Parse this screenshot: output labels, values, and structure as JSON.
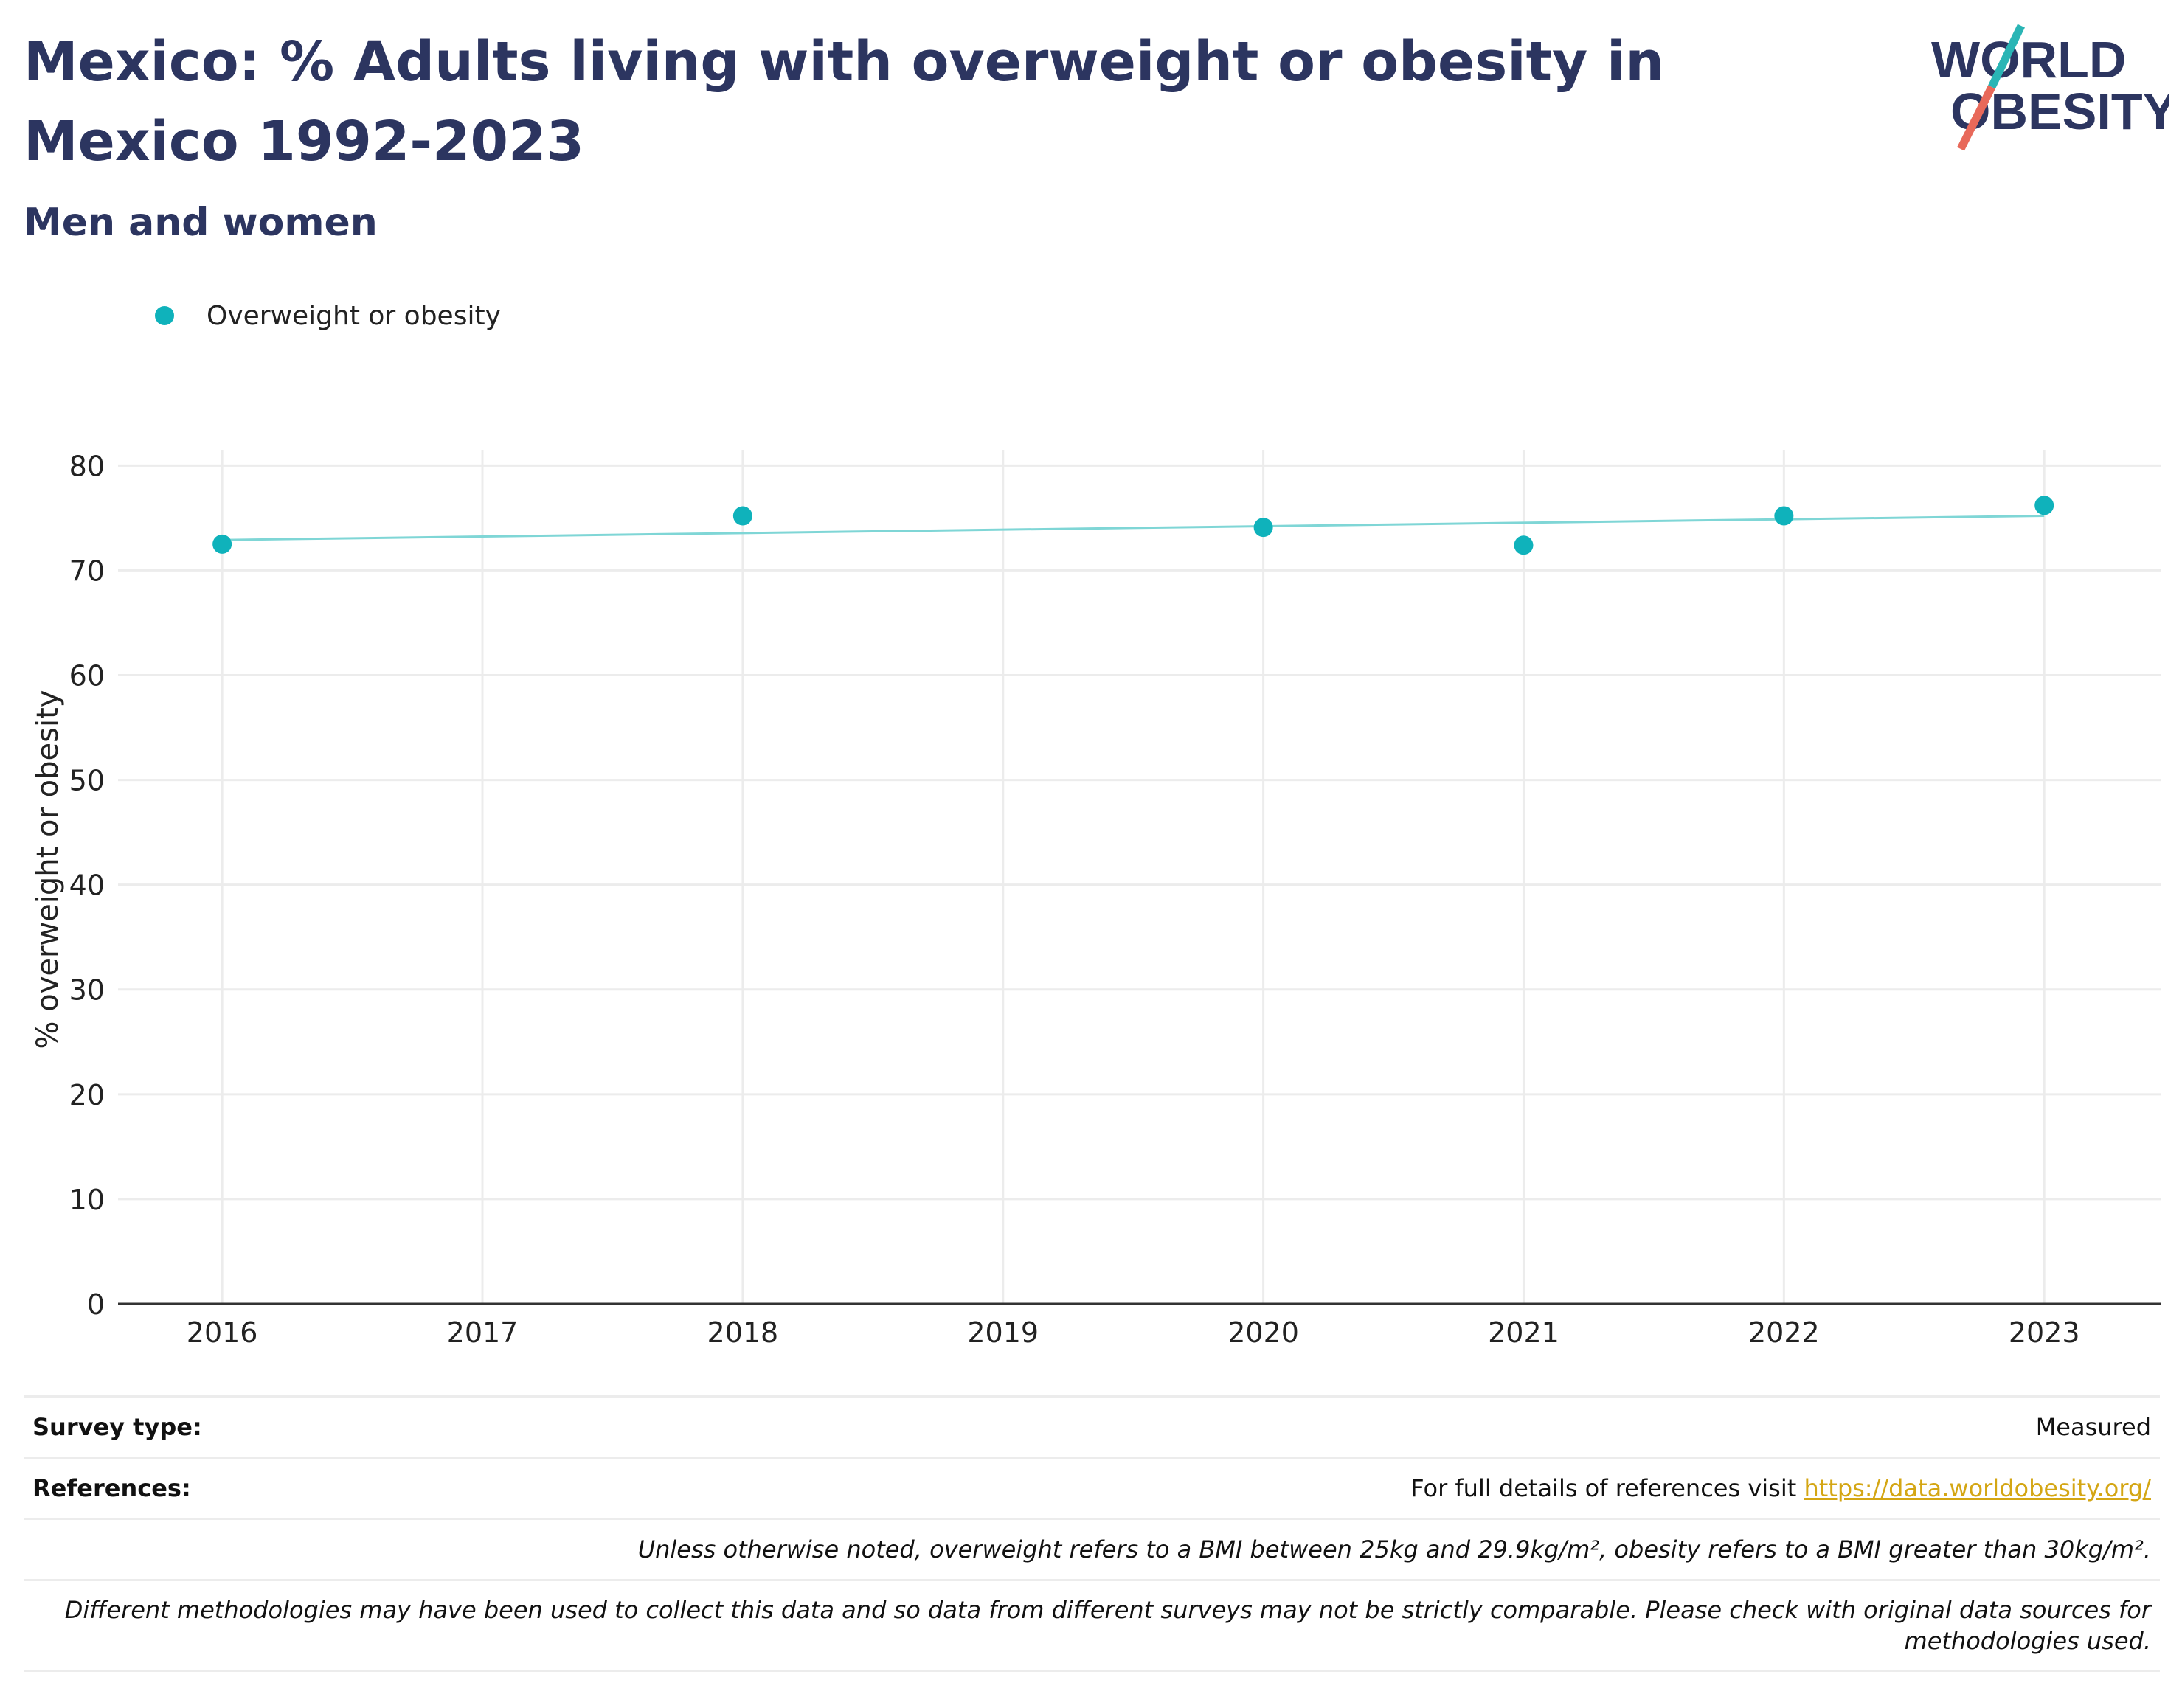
{
  "header": {
    "title": "Mexico: % Adults living with overweight or obesity in Mexico 1992-2023",
    "subtitle": "Men and women",
    "logo_line1": "WORLD",
    "logo_line2": "OBESITY"
  },
  "legend": {
    "label": "Overweight or obesity"
  },
  "colors": {
    "title": "#2c3560",
    "points": "#0fb2bb",
    "trend": "#7fd6d6",
    "grid": "#ececec",
    "axis": "#333333",
    "link": "#d4a614",
    "logo_teal": "#2ab5b5",
    "logo_red": "#e8695a"
  },
  "chart_data": {
    "type": "scatter",
    "ylabel": "% overweight or obesity",
    "xlabel": "",
    "x_ticks": [
      "2016",
      "2017",
      "2018",
      "2019",
      "2020",
      "2021",
      "2022",
      "2023"
    ],
    "y_ticks": [
      0,
      10,
      20,
      30,
      40,
      50,
      60,
      70,
      80
    ],
    "xlim": [
      2015.6,
      2023.45
    ],
    "ylim": [
      0,
      81.5
    ],
    "grid": true,
    "legend_position": "top-left",
    "series": [
      {
        "name": "Overweight or obesity",
        "x": [
          2016,
          2018,
          2020,
          2021,
          2022,
          2023
        ],
        "y": [
          72.5,
          75.2,
          74.1,
          72.4,
          75.2,
          76.2
        ]
      }
    ],
    "trendline": {
      "x": [
        2016,
        2023
      ],
      "y": [
        72.9,
        75.2
      ]
    }
  },
  "footer": {
    "survey_type_label": "Survey type:",
    "survey_type_value": "Measured",
    "references_label": "References:",
    "references_text": "For full details of references visit ",
    "references_link": "https://data.worldobesity.org/",
    "note_definition": "Unless otherwise noted, overweight refers to a BMI between 25kg and 29.9kg/m², obesity refers to a BMI greater than 30kg/m².",
    "note_methodology": "Different methodologies may have been used to collect this data and so data from different surveys may not be strictly comparable. Please check with original data sources for methodologies used."
  }
}
